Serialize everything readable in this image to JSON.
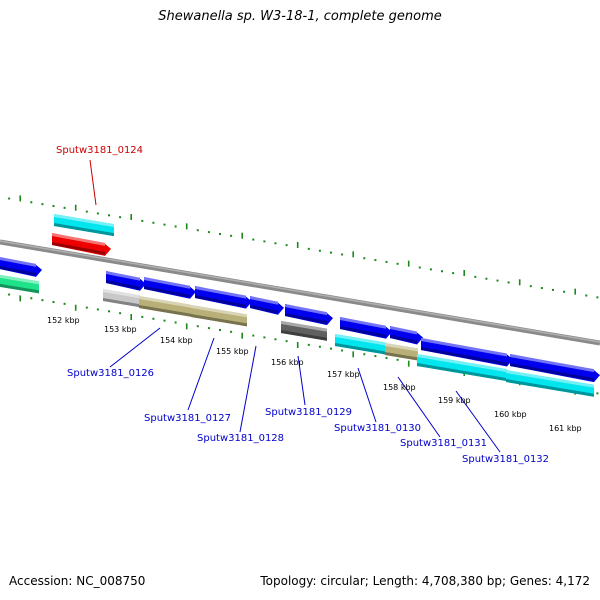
{
  "title": "Shewanella sp. W3-18-1, complete genome",
  "footer": {
    "accession": "Accession: NC_008750",
    "topology": "Topology: circular; Length: 4,708,380 bp; Genes: 4,172"
  },
  "scale_labels": [
    "152 kbp",
    "153 kbp",
    "154 kbp",
    "155 kbp",
    "156 kbp",
    "157 kbp",
    "158 kbp",
    "159 kbp",
    "160 kbp",
    "161 kbp"
  ],
  "gene_labels": [
    {
      "text": "Sputw3181_0124",
      "color": "#cc0000"
    },
    {
      "text": "Sputw3181_0126",
      "color": "#0000cc"
    },
    {
      "text": "Sputw3181_0127",
      "color": "#0000cc"
    },
    {
      "text": "Sputw3181_0128",
      "color": "#0000cc"
    },
    {
      "text": "Sputw3181_0129",
      "color": "#0000cc"
    },
    {
      "text": "Sputw3181_0130",
      "color": "#0000cc"
    },
    {
      "text": "Sputw3181_0131",
      "color": "#0000cc"
    },
    {
      "text": "Sputw3181_0132",
      "color": "#0000cc"
    }
  ],
  "colors": {
    "tick": "#1a8a1a",
    "backbone": "#8a8a8a",
    "cds_blue": "#0000ee",
    "cds_cyan": "#00e5ee",
    "cds_khaki": "#b8b078",
    "cds_gray": "#c8c8c8",
    "cds_dark": "#606060",
    "cds_red": "#ee0000",
    "cds_green": "#1ee38a",
    "label_red": "#cc0000",
    "label_blue": "#0000cc"
  }
}
